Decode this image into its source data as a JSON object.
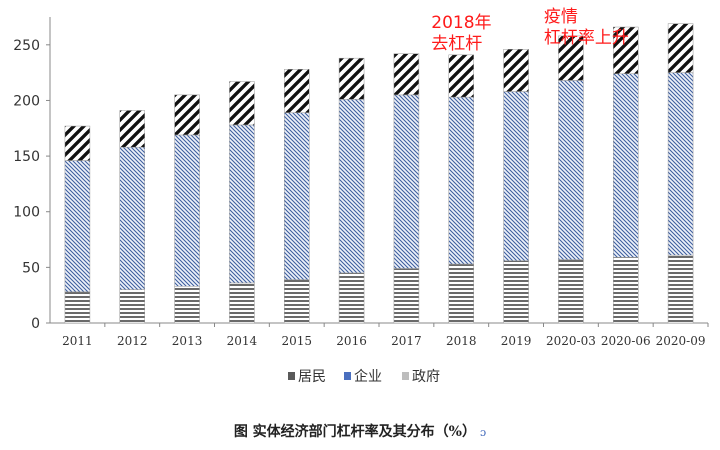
{
  "chart_data": {
    "type": "bar",
    "stacked": true,
    "categories": [
      "2011",
      "2012",
      "2013",
      "2014",
      "2015",
      "2016",
      "2017",
      "2018",
      "2019",
      "2020-03",
      "2020-06",
      "2020-09"
    ],
    "series": [
      {
        "name": "居民",
        "values": [
          28,
          30,
          33,
          36,
          39,
          45,
          49,
          53,
          56,
          57,
          59,
          61
        ]
      },
      {
        "name": "企业",
        "values": [
          118,
          128,
          136,
          142,
          150,
          156,
          156,
          150,
          152,
          161,
          165,
          164
        ]
      },
      {
        "name": "政府",
        "values": [
          31,
          33,
          36,
          39,
          39,
          37,
          37,
          38,
          38,
          40,
          42,
          44
        ]
      }
    ],
    "ylim": [
      0,
      275
    ],
    "yticks": [
      0,
      50,
      100,
      150,
      200,
      250
    ],
    "title": "图  实体经济部门杠杆率及其分布（%）",
    "legend_position": "bottom",
    "annotations": [
      {
        "lines": [
          "2018年",
          "去杠杆"
        ],
        "category": "2018"
      },
      {
        "lines": [
          "疫情",
          "杠杆率上升"
        ],
        "category": "2020-03"
      }
    ],
    "colors": {
      "resident": "#555555",
      "enterprise": "#4a6fbf",
      "government": "#c8c8c8",
      "annotation": "#ff1a1a"
    }
  },
  "caption_mark": "ɔ"
}
